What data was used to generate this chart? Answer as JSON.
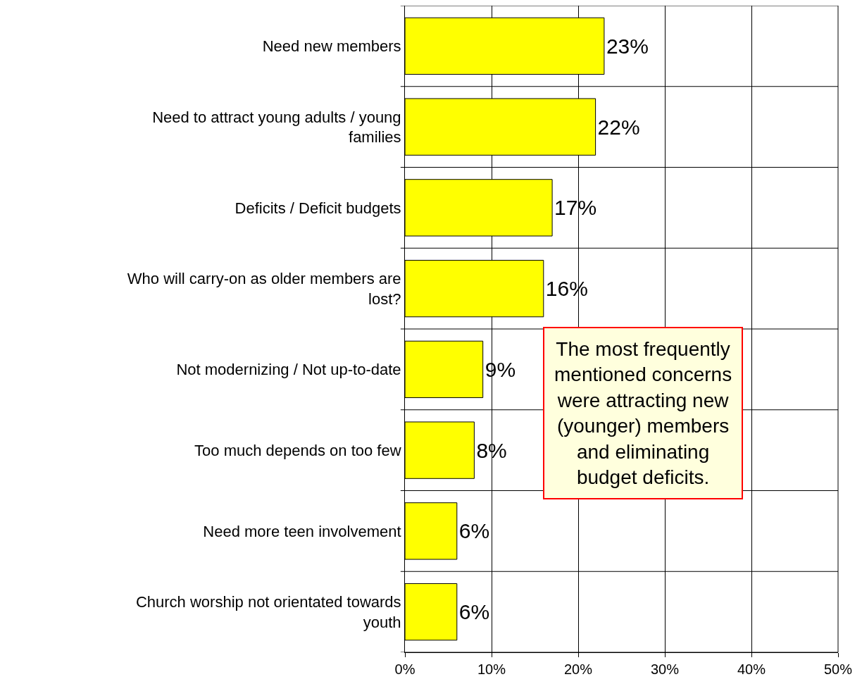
{
  "chart_data": {
    "type": "bar",
    "orientation": "horizontal",
    "categories": [
      "Need new members",
      "Need to attract young adults / young families",
      "Deficits / Deficit budgets",
      "Who will carry-on as older members are lost?",
      "Not modernizing / Not up-to-date",
      "Too much depends on too few",
      "Need more teen involvement",
      "Church worship not orientated towards youth"
    ],
    "values": [
      23,
      22,
      17,
      16,
      9,
      8,
      6,
      6
    ],
    "value_labels": [
      "23%",
      "22%",
      "17%",
      "16%",
      "9%",
      "8%",
      "6%",
      "6%"
    ],
    "color": "#ffff00",
    "xlim": [
      0,
      50
    ],
    "xticks": [
      {
        "value": 0,
        "label": "0%"
      },
      {
        "value": 10,
        "label": "10%"
      },
      {
        "value": 20,
        "label": "20%"
      },
      {
        "value": 30,
        "label": "30%"
      },
      {
        "value": 40,
        "label": "40%"
      },
      {
        "value": 50,
        "label": "50%"
      }
    ],
    "grid": true,
    "legend": false,
    "annotations": [
      "The most frequently mentioned concerns were attracting new (younger) members and eliminating budget deficits."
    ]
  }
}
